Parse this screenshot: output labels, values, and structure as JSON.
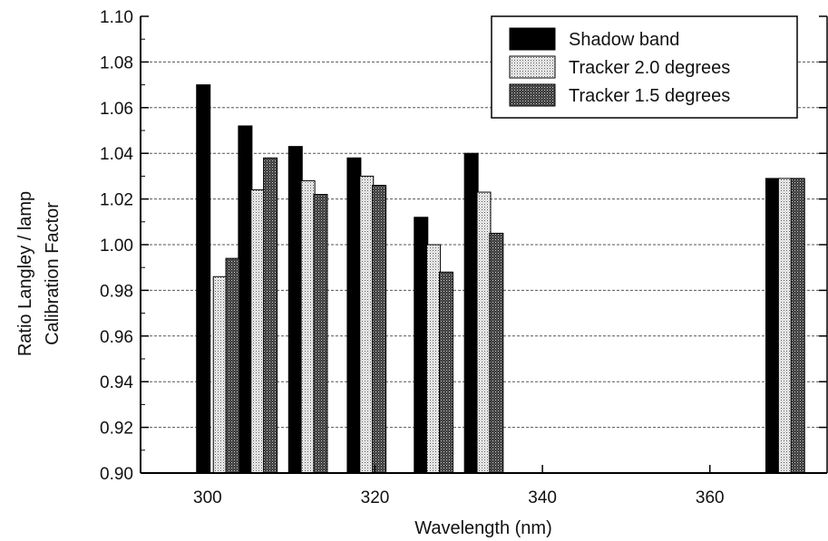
{
  "chart_data": {
    "type": "bar",
    "xlabel": "Wavelength (nm)",
    "ylabel_lines": [
      "Ratio Langley / lamp",
      "Calibration Factor"
    ],
    "xlim": [
      292,
      374
    ],
    "ylim": [
      0.9,
      1.1
    ],
    "x_ticks": [
      300,
      320,
      340,
      360
    ],
    "y_ticks": [
      "0.90",
      "0.92",
      "0.94",
      "0.96",
      "0.98",
      "1.00",
      "1.02",
      "1.04",
      "1.06",
      "1.08",
      "1.10"
    ],
    "grid": "horizontal dashed at major y ticks",
    "legend_position": "top-right",
    "series": [
      {
        "name": "Shadow band",
        "pattern": "solid-black",
        "x": [
          299.5,
          304.5,
          310.5,
          317.5,
          325.5,
          331.5,
          367.5
        ],
        "values": [
          1.07,
          1.052,
          1.043,
          1.038,
          1.012,
          1.04,
          1.029
        ]
      },
      {
        "name": "Tracker 2.0 degrees",
        "pattern": "light-dots",
        "x": [
          301.5,
          306.0,
          312.0,
          319.0,
          327.0,
          333.0,
          369.0
        ],
        "values": [
          0.986,
          1.024,
          1.028,
          1.03,
          1.0,
          1.023,
          1.029
        ]
      },
      {
        "name": "Tracker 1.5 degrees",
        "pattern": "dark-dots",
        "x": [
          303.0,
          307.5,
          313.5,
          320.5,
          328.5,
          334.5,
          370.5
        ],
        "values": [
          0.994,
          1.038,
          1.022,
          1.026,
          0.988,
          1.005,
          1.029
        ]
      }
    ]
  }
}
